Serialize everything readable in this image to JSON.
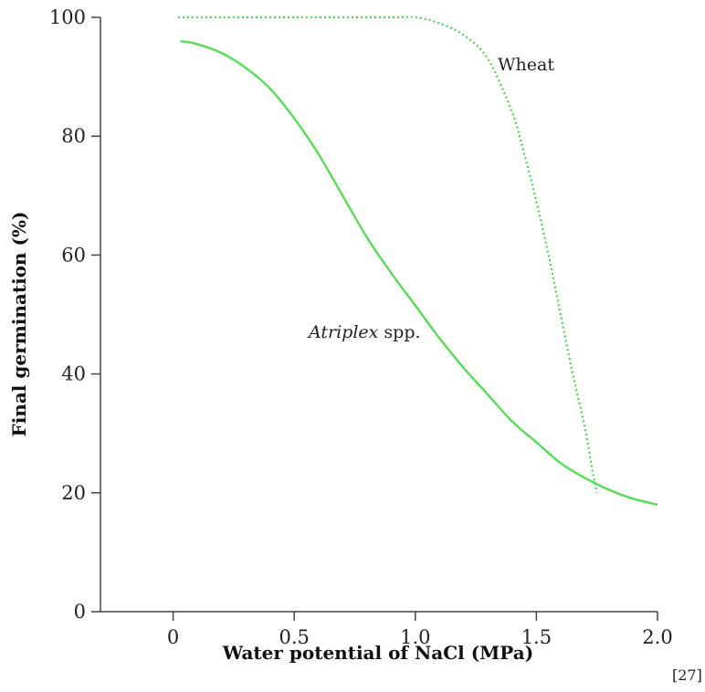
{
  "chart_data": {
    "type": "line",
    "xlabel": "Water potential of NaCl (MPa)",
    "ylabel": "Final germination (%)",
    "xlim": [
      -0.3,
      2.0
    ],
    "ylim": [
      0,
      100
    ],
    "x_ticks": [
      0,
      0.5,
      1.0,
      1.5,
      2.0
    ],
    "x_tick_labels": [
      "0",
      "0.5",
      "1.0",
      "1.5",
      "2.0"
    ],
    "y_ticks": [
      0,
      20,
      40,
      60,
      80,
      100
    ],
    "y_tick_labels": [
      "0",
      "20",
      "40",
      "60",
      "80",
      "100"
    ],
    "grid": false,
    "series": [
      {
        "name": "Wheat",
        "style": "dotted",
        "color": "#55cc55",
        "x": [
          0.02,
          0.5,
          0.9,
          1.0,
          1.1,
          1.2,
          1.3,
          1.4,
          1.45,
          1.5,
          1.55,
          1.6,
          1.65,
          1.7,
          1.73,
          1.75
        ],
        "y": [
          100,
          100,
          100,
          100,
          99,
          97,
          93,
          84,
          77,
          69,
          60,
          50,
          40,
          31,
          24,
          20
        ]
      },
      {
        "name_prefix": "A",
        "name_italic": "triplex",
        "name_suffix": " spp.",
        "style": "solid",
        "color": "#55dd55",
        "x": [
          0.03,
          0.1,
          0.2,
          0.3,
          0.4,
          0.5,
          0.6,
          0.7,
          0.8,
          0.9,
          1.0,
          1.1,
          1.2,
          1.3,
          1.4,
          1.5,
          1.6,
          1.7,
          1.8,
          1.9,
          2.0
        ],
        "y": [
          96,
          95.5,
          94,
          91.5,
          88,
          83,
          77,
          70,
          63,
          57,
          51.5,
          46,
          41,
          36.5,
          32,
          28.5,
          25,
          22.5,
          20.5,
          19,
          18
        ]
      }
    ]
  },
  "reference": "[27]"
}
